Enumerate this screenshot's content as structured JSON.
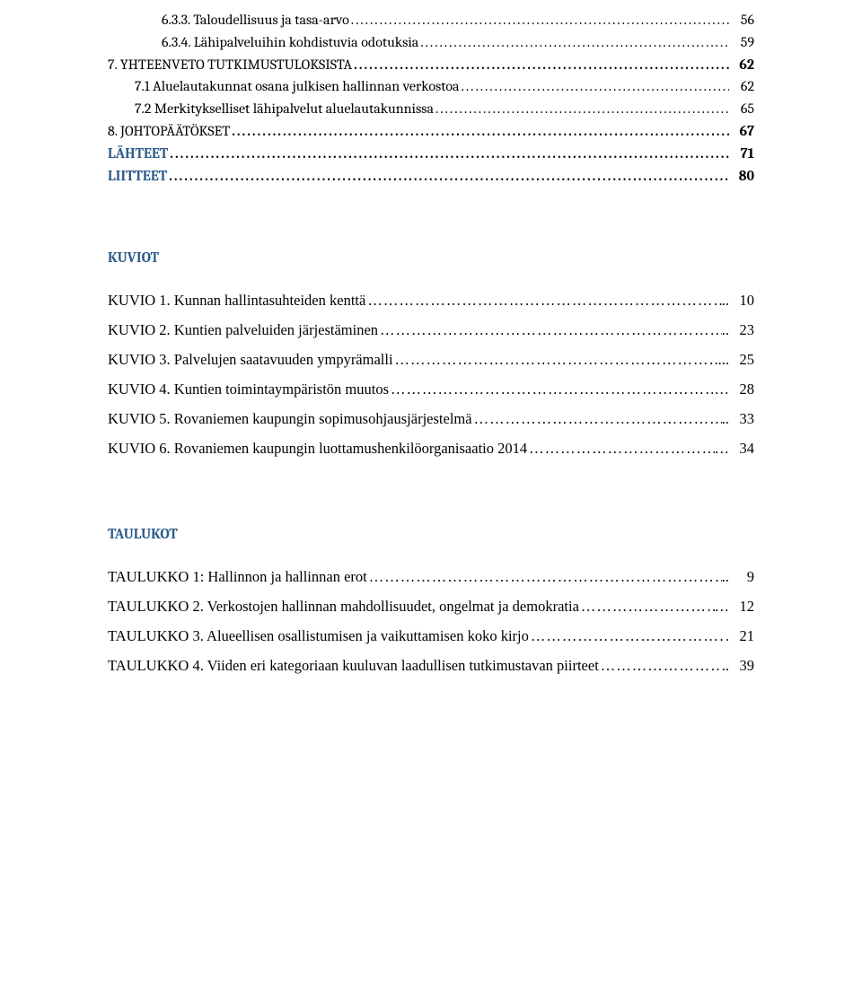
{
  "toc": [
    {
      "style": "lvl-sub",
      "label": "6.3.3. Taloudellisuus ja tasa-arvo",
      "page": "56",
      "leader": "dots"
    },
    {
      "style": "lvl-sub",
      "label": "6.3.4. Lähipalveluihin kohdistuvia odotuksia",
      "page": "59",
      "leader": "dots"
    },
    {
      "style": "lvl-chap",
      "label": "7. YHTEENVETO TUTKIMUSTULOKSISTA",
      "page": "62",
      "leader": "dots-heavy",
      "bold_page": true
    },
    {
      "style": "lvl-sec",
      "label": "7.1 Aluelautakunnat osana julkisen hallinnan verkostoa",
      "page": "62",
      "leader": "dots"
    },
    {
      "style": "lvl-sec",
      "label": "7.2 Merkitykselliset lähipalvelut aluelautakunnissa",
      "page": "65",
      "leader": "dots"
    },
    {
      "style": "lvl-chap",
      "label": "8. JOHTOPÄÄTÖKSET",
      "page": "67",
      "leader": "dots-heavy",
      "bold_page": true
    },
    {
      "style": "lvl-top",
      "label": "LÄHTEET",
      "page": "71",
      "leader": "dots-heavy",
      "bold_page": true
    },
    {
      "style": "lvl-top",
      "label": "LIITTEET",
      "page": "80",
      "leader": "dots-heavy",
      "bold_page": true
    }
  ],
  "kuviot_heading": "KUVIOT",
  "kuviot": [
    {
      "label": "KUVIO 1. Kunnan hallintasuhteiden kenttä",
      "page": "10",
      "leader": ".."
    },
    {
      "label": "KUVIO 2. Kuntien palveluiden järjestäminen",
      "page": "23",
      "leader": ".."
    },
    {
      "label": "KUVIO 3. Palvelujen saatavuuden ympyrämalli",
      "page": "25",
      "leader": "..."
    },
    {
      "label": "KUVIO 4. Kuntien toimintaympäristön muutos",
      "page": "28",
      "leader": "…"
    },
    {
      "label": "KUVIO 5. Rovaniemen kaupungin sopimusohjausjärjestelmä",
      "page": "33",
      "leader": ".."
    },
    {
      "label": "KUVIO 6. Rovaniemen kaupungin luottamushenkilöorganisaatio 2014",
      "page": "34",
      "leader": "…"
    }
  ],
  "taulukot_heading": "TAULUKOT",
  "taulukot": [
    {
      "label": "TAULUKKO 1: Hallinnon ja hallinnan erot",
      "page": "9",
      "leader": ".."
    },
    {
      "label": "TAULUKKO 2. Verkostojen hallinnan mahdollisuudet, ongelmat ja demokratia",
      "page": "12",
      "leader": "…"
    },
    {
      "label": "TAULUKKO 3. Alueellisen osallistumisen ja vaikuttamisen koko kirjo",
      "page": "21",
      "leader": "."
    },
    {
      "label": "TAULUKKO 4. Viiden eri kategoriaan kuuluvan laadullisen tutkimustavan piirteet",
      "page": "39",
      "leader": ".."
    }
  ],
  "colors": {
    "heading": "#2e5c8a",
    "text": "#000000",
    "background": "#ffffff"
  }
}
